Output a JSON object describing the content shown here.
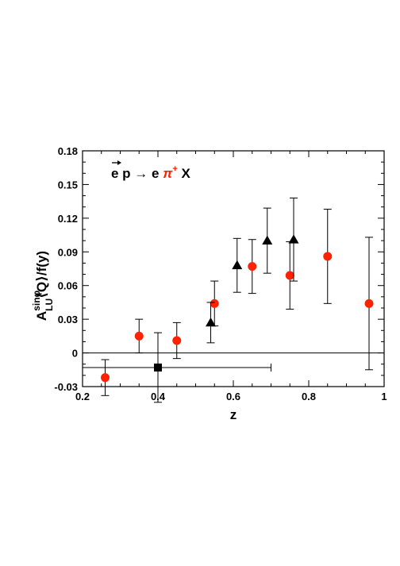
{
  "chart_data": {
    "type": "scatter",
    "xlim": [
      0.2,
      1.0
    ],
    "ylim": [
      -0.03,
      0.18
    ],
    "x_ticks": [
      "0.2",
      "0.4",
      "0.6",
      "0.8",
      "1"
    ],
    "y_ticks": [
      "-0.03",
      "0",
      "0.03",
      "0.06",
      "0.09",
      "0.12",
      "0.15",
      "0.18"
    ],
    "xlabel": "z",
    "ylabel": {
      "base": "A",
      "superscript": "sinφ",
      "subscript": "LU",
      "rest": "⟨Q⟩/f(y)"
    },
    "annotation": {
      "lhs": "e p",
      "arrow": "→",
      "e": "e",
      "pi": "π",
      "pi_sup": "+",
      "X": "X"
    },
    "grid": false,
    "zero_line": true,
    "series": [
      {
        "marker": "circle",
        "color": "#ff2200",
        "points": [
          {
            "x": 0.26,
            "y": -0.022,
            "err": 0.016
          },
          {
            "x": 0.35,
            "y": 0.015,
            "err": 0.015
          },
          {
            "x": 0.45,
            "y": 0.011,
            "err": 0.016
          },
          {
            "x": 0.55,
            "y": 0.044,
            "err": 0.02
          },
          {
            "x": 0.65,
            "y": 0.077,
            "err": 0.024
          },
          {
            "x": 0.75,
            "y": 0.069,
            "err": 0.03
          },
          {
            "x": 0.85,
            "y": 0.086,
            "err": 0.042
          },
          {
            "x": 0.96,
            "y": 0.044,
            "err": 0.059
          }
        ]
      },
      {
        "marker": "triangle",
        "color": "#000000",
        "points": [
          {
            "x": 0.54,
            "y": 0.027,
            "err": 0.018
          },
          {
            "x": 0.61,
            "y": 0.078,
            "err": 0.024
          },
          {
            "x": 0.69,
            "y": 0.1,
            "err": 0.029
          },
          {
            "x": 0.76,
            "y": 0.101,
            "err": 0.037
          }
        ]
      },
      {
        "marker": "square",
        "color": "#000000",
        "points": [
          {
            "x": 0.4,
            "y": -0.013,
            "err": 0.031,
            "xerr_low": 0.2,
            "xerr_high": 0.7
          }
        ]
      }
    ]
  }
}
